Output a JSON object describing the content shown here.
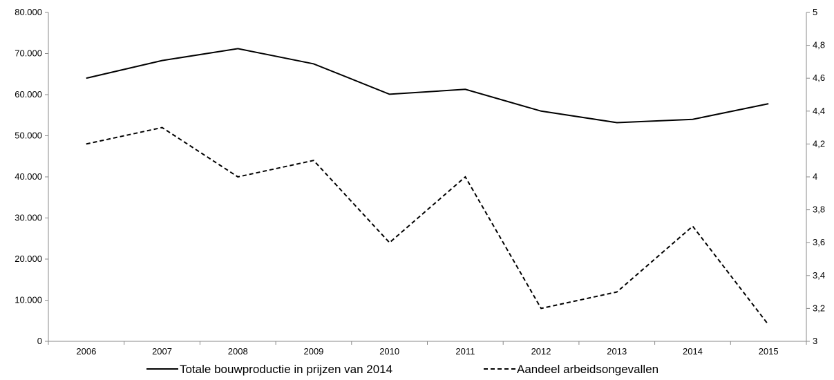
{
  "chart_data": {
    "type": "line",
    "title": "",
    "x": [
      "2006",
      "2007",
      "2008",
      "2009",
      "2010",
      "2011",
      "2012",
      "2013",
      "2014",
      "2015"
    ],
    "y_left": {
      "min": 0,
      "max": 80000,
      "ticks": [
        0,
        10000,
        20000,
        30000,
        40000,
        50000,
        60000,
        70000,
        80000
      ],
      "tick_labels": [
        "0",
        "10.000",
        "20.000",
        "30.000",
        "40.000",
        "50.000",
        "60.000",
        "70.000",
        "80.000"
      ]
    },
    "y_right": {
      "min": 3,
      "max": 5,
      "ticks": [
        3,
        3.2,
        3.4,
        3.6,
        3.8,
        4,
        4.2,
        4.4,
        4.6,
        4.8,
        5
      ],
      "tick_labels": [
        "3",
        "3,2",
        "3,4",
        "3,6",
        "3,8",
        "4",
        "4,2",
        "4,4",
        "4,6",
        "4,8",
        "5"
      ]
    },
    "grid": false,
    "legend_position": "bottom",
    "series": [
      {
        "name": "Totale bouwproductie in prijzen van 2014",
        "axis": "left",
        "style": "solid",
        "color": "#000000",
        "values": [
          64000,
          68300,
          71200,
          67500,
          60100,
          61300,
          56000,
          53200,
          54000,
          57800
        ]
      },
      {
        "name": "Aandeel arbeidsongevallen",
        "axis": "right",
        "style": "dashed",
        "color": "#000000",
        "values": [
          4.2,
          4.3,
          4.0,
          4.1,
          3.6,
          4.0,
          3.2,
          3.3,
          3.7,
          3.1
        ]
      }
    ]
  }
}
